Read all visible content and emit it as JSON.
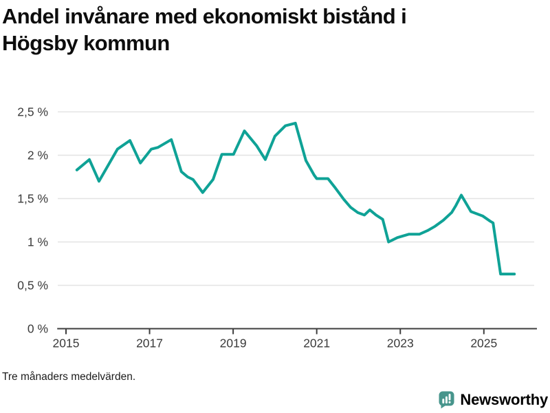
{
  "title": {
    "line1": "Andel invånare med ekonomiskt bistånd i",
    "line2": "Högsby kommun"
  },
  "footnote": "Tre månaders medelvärden.",
  "logo": {
    "wordmark": "Newsworthy",
    "icon": "bar-chart-speech-bubble-icon",
    "teal": "#3E9187",
    "icon_fill": "#47958C"
  },
  "colors": {
    "line": "#0FA296",
    "grid": "#E3E3E3",
    "axis": "#3D3D3D",
    "tick_label": "#3A3A3A"
  },
  "chart_data": {
    "type": "line",
    "title": "Andel invånare med ekonomiskt bistånd i Högsby kommun",
    "subtitle": "Tre månaders medelvärden.",
    "xlabel": "",
    "ylabel": "",
    "unit": "%",
    "grid": true,
    "legend": "none",
    "xlim": [
      2014.79,
      2026.27
    ],
    "ylim": [
      0,
      2.52
    ],
    "xticks": {
      "values": [
        2015,
        2017,
        2019,
        2021,
        2023,
        2025
      ],
      "labels": [
        "2015",
        "2017",
        "2019",
        "2021",
        "2023",
        "2025"
      ]
    },
    "yticks": {
      "values": [
        0,
        0.5,
        1,
        1.5,
        2,
        2.5
      ],
      "labels": [
        "0 %",
        "0,5 %",
        "1 %",
        "1,5 %",
        "2 %",
        "2,5 %"
      ]
    },
    "x": [
      2015.26,
      2015.56,
      2015.79,
      2016.23,
      2016.53,
      2016.78,
      2017.04,
      2017.2,
      2017.52,
      2017.76,
      2017.91,
      2018.04,
      2018.27,
      2018.52,
      2018.73,
      2019.01,
      2019.27,
      2019.56,
      2019.77,
      2020.0,
      2020.25,
      2020.49,
      2020.74,
      2020.94,
      2021.0,
      2021.27,
      2021.45,
      2021.65,
      2021.81,
      2021.98,
      2022.14,
      2022.27,
      2022.42,
      2022.58,
      2022.72,
      2022.93,
      2023.21,
      2023.46,
      2023.65,
      2023.83,
      2024.03,
      2024.23,
      2024.33,
      2024.46,
      2024.69,
      2024.97,
      2025.15,
      2025.22,
      2025.4,
      2025.73
    ],
    "values": [
      1.83,
      1.95,
      1.7,
      2.07,
      2.17,
      1.91,
      2.07,
      2.09,
      2.18,
      1.81,
      1.75,
      1.72,
      1.57,
      1.72,
      2.01,
      2.01,
      2.28,
      2.11,
      1.95,
      2.22,
      2.34,
      2.37,
      1.94,
      1.77,
      1.73,
      1.73,
      1.62,
      1.49,
      1.4,
      1.34,
      1.31,
      1.37,
      1.31,
      1.26,
      1.0,
      1.05,
      1.09,
      1.09,
      1.13,
      1.18,
      1.25,
      1.34,
      1.42,
      1.54,
      1.35,
      1.3,
      1.24,
      1.22,
      0.63,
      0.63
    ]
  }
}
